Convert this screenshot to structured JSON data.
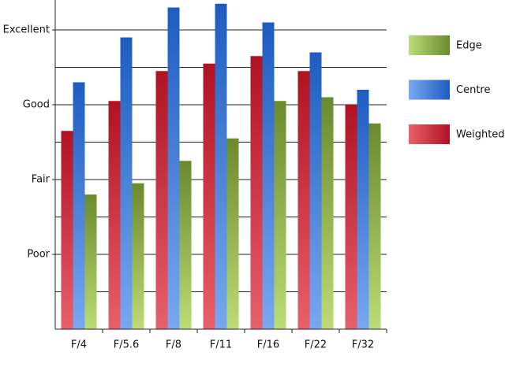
{
  "chart_data": {
    "type": "bar",
    "categories": [
      "F/4",
      "F/5.6",
      "F/8",
      "F/11",
      "F/16",
      "F/22",
      "F/32"
    ],
    "series": [
      {
        "name": "Weighted",
        "color": "#e8606a",
        "color_dark": "#b01222",
        "values": [
          5.3,
          6.1,
          6.9,
          7.1,
          7.3,
          6.9,
          6.0
        ]
      },
      {
        "name": "Centre",
        "color": "#78a8f0",
        "color_dark": "#1e5cc0",
        "values": [
          6.6,
          7.8,
          8.6,
          8.7,
          8.2,
          7.4,
          6.4
        ]
      },
      {
        "name": "Edge",
        "color": "#bcdc78",
        "color_dark": "#6a8a2c",
        "values": [
          3.6,
          3.9,
          4.5,
          5.1,
          6.1,
          6.2,
          5.5
        ]
      }
    ],
    "ylim": [
      0,
      8.8
    ],
    "yticks": [
      {
        "value": 2,
        "label": "Poor"
      },
      {
        "value": 4,
        "label": "Fair"
      },
      {
        "value": 6,
        "label": "Good"
      },
      {
        "value": 8,
        "label": "Excellent"
      }
    ],
    "ygrid": [
      1,
      2,
      3,
      4,
      5,
      6,
      7,
      8
    ],
    "grid": true,
    "legend": "right"
  }
}
